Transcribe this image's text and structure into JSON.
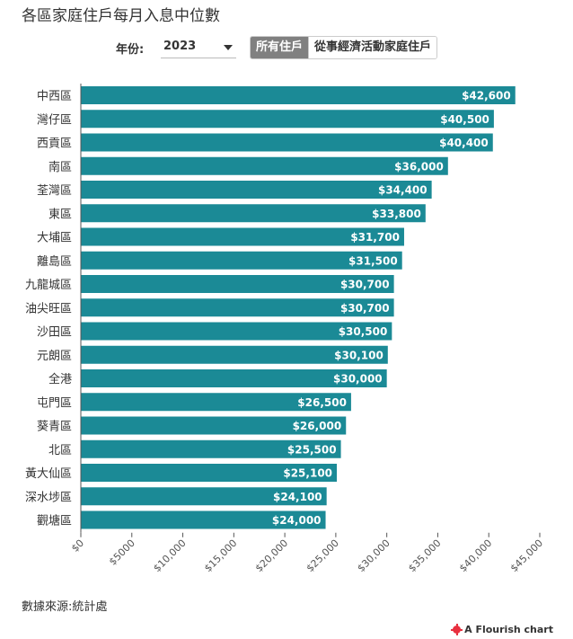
{
  "title": "各區家庭住戶每月入息中位數",
  "controls": {
    "year_label": "年份:",
    "year_value": "2023",
    "buttons": [
      {
        "label": "所有住戶",
        "active": true
      },
      {
        "label": "從事經濟活動家庭住戶",
        "active": false
      }
    ]
  },
  "source": "數據來源:統計處",
  "flourish_label": "A Flourish chart",
  "colors": {
    "bar": "#1b8a96",
    "axis": "#555555"
  },
  "chart_data": {
    "type": "bar",
    "orientation": "horizontal",
    "categories": [
      "中西區",
      "灣仔區",
      "西貢區",
      "南區",
      "荃灣區",
      "東區",
      "大埔區",
      "離島區",
      "九龍城區",
      "油尖旺區",
      "沙田區",
      "元朗區",
      "全港",
      "屯門區",
      "葵青區",
      "北區",
      "黃大仙區",
      "深水埗區",
      "觀塘區"
    ],
    "values": [
      42600,
      40500,
      40400,
      36000,
      34400,
      33800,
      31700,
      31500,
      30700,
      30700,
      30500,
      30100,
      30000,
      26500,
      26000,
      25500,
      25100,
      24100,
      24000
    ],
    "value_labels": [
      "$42,600",
      "$40,500",
      "$40,400",
      "$36,000",
      "$34,400",
      "$33,800",
      "$31,700",
      "$31,500",
      "$30,700",
      "$30,700",
      "$30,500",
      "$30,100",
      "$30,000",
      "$26,500",
      "$26,000",
      "$25,500",
      "$25,100",
      "$24,100",
      "$24,000"
    ],
    "xlim": [
      0,
      45000
    ],
    "x_ticks": [
      0,
      5000,
      10000,
      15000,
      20000,
      25000,
      30000,
      35000,
      40000,
      45000
    ],
    "x_tick_labels": [
      "$0",
      "$5000",
      "$10,000",
      "$15,000",
      "$20,000",
      "$25,000",
      "$30,000",
      "$35,000",
      "$40,000",
      "$45,000"
    ],
    "grid": false
  }
}
